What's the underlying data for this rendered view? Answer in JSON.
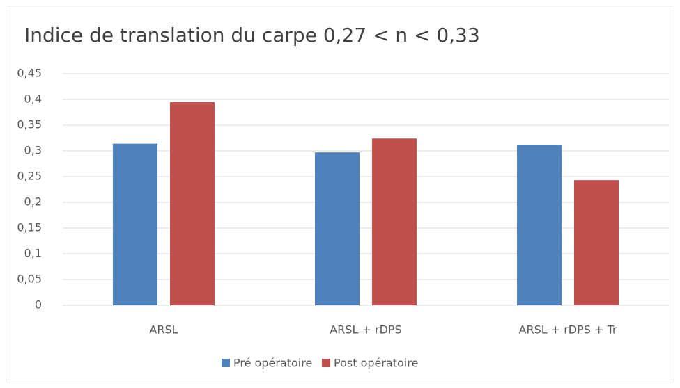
{
  "chart_data": {
    "type": "bar",
    "title": "Indice de translation du carpe 0,27 < n < 0,33",
    "categories": [
      "ARSL",
      "ARSL + rDPS",
      "ARSL + rDPS + Tr"
    ],
    "series": [
      {
        "name": "Pré opératoire",
        "color": "#4f81bd",
        "values": [
          0.314,
          0.297,
          0.312
        ]
      },
      {
        "name": "Post opératoire",
        "color": "#c0504d",
        "values": [
          0.395,
          0.324,
          0.243
        ]
      }
    ],
    "ylim": [
      0,
      0.45
    ],
    "yticks": [
      0,
      {
        "value": 0.05,
        "label": "0,05"
      },
      {
        "value": 0.1,
        "label": "0,1"
      },
      {
        "value": 0.15,
        "label": "0,15"
      },
      {
        "value": 0.2,
        "label": "0,2"
      },
      {
        "value": 0.25,
        "label": "0,25"
      },
      {
        "value": 0.3,
        "label": "0,3"
      },
      {
        "value": 0.35,
        "label": "0,35"
      },
      {
        "value": 0.4,
        "label": "0,4"
      },
      {
        "value": 0.45,
        "label": "0,45"
      }
    ],
    "grid": true,
    "legend": "bottom"
  }
}
